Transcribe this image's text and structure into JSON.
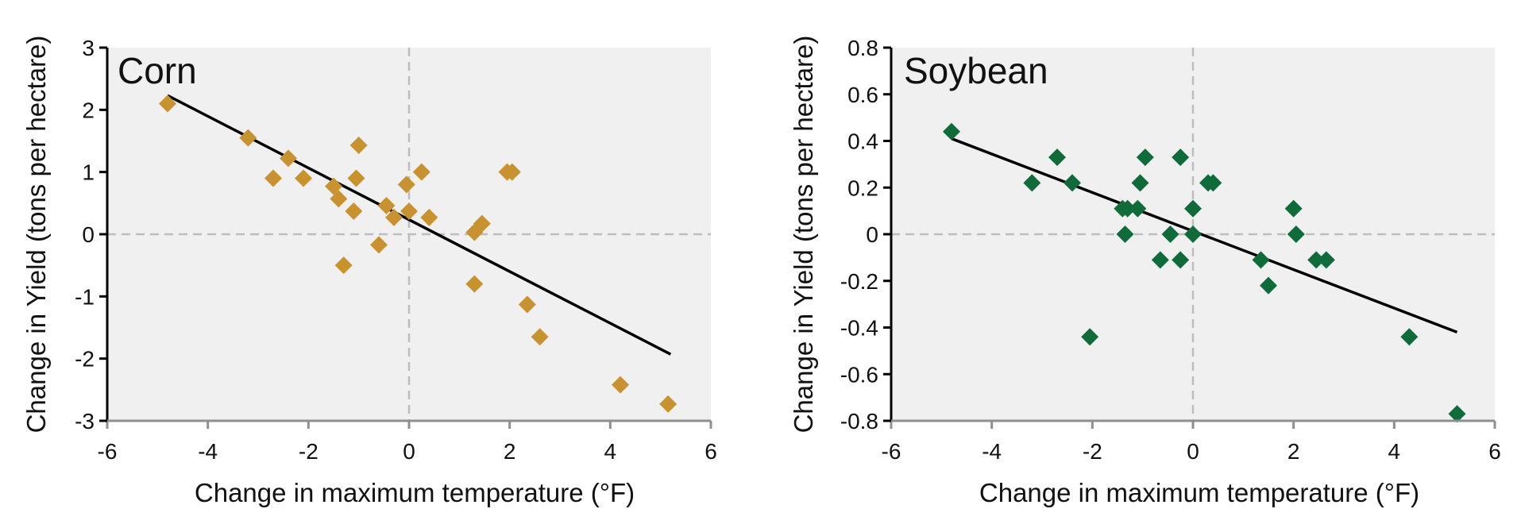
{
  "colors": {
    "corn": "#C8922E",
    "soybean": "#0E6B3A",
    "plot_background": "#F0F0F0",
    "axis": "#8F8F8F",
    "zero_line": "#BDBDBD",
    "fit_line": "#000000"
  },
  "chart_data": [
    {
      "type": "scatter",
      "title": "Corn",
      "xlabel": "Change in maximum temperature (°F)",
      "ylabel": "Change in Yield (tons per hectare)",
      "xlim": [
        -6,
        6
      ],
      "ylim": [
        -3,
        3
      ],
      "xticks": [
        "-6",
        "-4",
        "-2",
        "0",
        "2",
        "4",
        "6"
      ],
      "yticks": [
        "-3",
        "-2",
        "-1",
        "0",
        "1",
        "2",
        "3"
      ],
      "grid": false,
      "zero_lines": true,
      "marker": "diamond",
      "color": "#C8922E",
      "points": [
        [
          -4.8,
          2.1
        ],
        [
          -3.2,
          1.55
        ],
        [
          -2.4,
          1.22
        ],
        [
          -2.7,
          0.9
        ],
        [
          -2.1,
          0.9
        ],
        [
          -1.5,
          0.77
        ],
        [
          -1.4,
          0.57
        ],
        [
          -1.3,
          -0.5
        ],
        [
          -1.0,
          1.43
        ],
        [
          -1.05,
          0.9
        ],
        [
          -1.1,
          0.37
        ],
        [
          -0.6,
          -0.17
        ],
        [
          -0.45,
          0.46
        ],
        [
          -0.3,
          0.27
        ],
        [
          -0.05,
          0.8
        ],
        [
          0.0,
          0.37
        ],
        [
          0.25,
          1.0
        ],
        [
          0.4,
          0.27
        ],
        [
          1.3,
          0.03
        ],
        [
          1.45,
          0.17
        ],
        [
          1.95,
          1.0
        ],
        [
          2.05,
          1.0
        ],
        [
          1.3,
          -0.8
        ],
        [
          2.35,
          -1.13
        ],
        [
          2.6,
          -1.65
        ],
        [
          4.2,
          -2.42
        ],
        [
          5.15,
          -2.73
        ]
      ],
      "fit_line": {
        "x": [
          -4.8,
          5.2
        ],
        "y": [
          2.23,
          -1.93
        ]
      }
    },
    {
      "type": "scatter",
      "title": "Soybean",
      "xlabel": "Change in maximum temperature (°F)",
      "ylabel": "Change in Yield (tons per hectare)",
      "xlim": [
        -6,
        6
      ],
      "ylim": [
        -0.8,
        0.8
      ],
      "xticks": [
        "-6",
        "-4",
        "-2",
        "0",
        "2",
        "4",
        "6"
      ],
      "yticks": [
        "-0.8",
        "-0.6",
        "-0.4",
        "-0.2",
        "0",
        "0.2",
        "0.4",
        "0.6",
        "0.8"
      ],
      "grid": false,
      "zero_lines": true,
      "marker": "diamond",
      "color": "#0E6B3A",
      "points": [
        [
          -4.8,
          0.44
        ],
        [
          -3.2,
          0.22
        ],
        [
          -2.7,
          0.33
        ],
        [
          -2.4,
          0.22
        ],
        [
          -2.05,
          -0.44
        ],
        [
          -1.4,
          0.11
        ],
        [
          -1.3,
          0.11
        ],
        [
          -1.1,
          0.11
        ],
        [
          -1.35,
          0.0
        ],
        [
          -1.05,
          0.22
        ],
        [
          -0.95,
          0.33
        ],
        [
          -0.65,
          -0.11
        ],
        [
          -0.45,
          0.0
        ],
        [
          -0.25,
          -0.11
        ],
        [
          -0.25,
          0.33
        ],
        [
          0.0,
          0.11
        ],
        [
          0.0,
          0.0
        ],
        [
          0.3,
          0.22
        ],
        [
          0.4,
          0.22
        ],
        [
          1.35,
          -0.11
        ],
        [
          1.5,
          -0.22
        ],
        [
          2.0,
          0.11
        ],
        [
          2.05,
          0.0
        ],
        [
          2.45,
          -0.11
        ],
        [
          2.65,
          -0.11
        ],
        [
          4.3,
          -0.44
        ],
        [
          5.25,
          -0.77
        ]
      ],
      "fit_line": {
        "x": [
          -4.8,
          5.25
        ],
        "y": [
          0.41,
          -0.42
        ]
      }
    }
  ]
}
